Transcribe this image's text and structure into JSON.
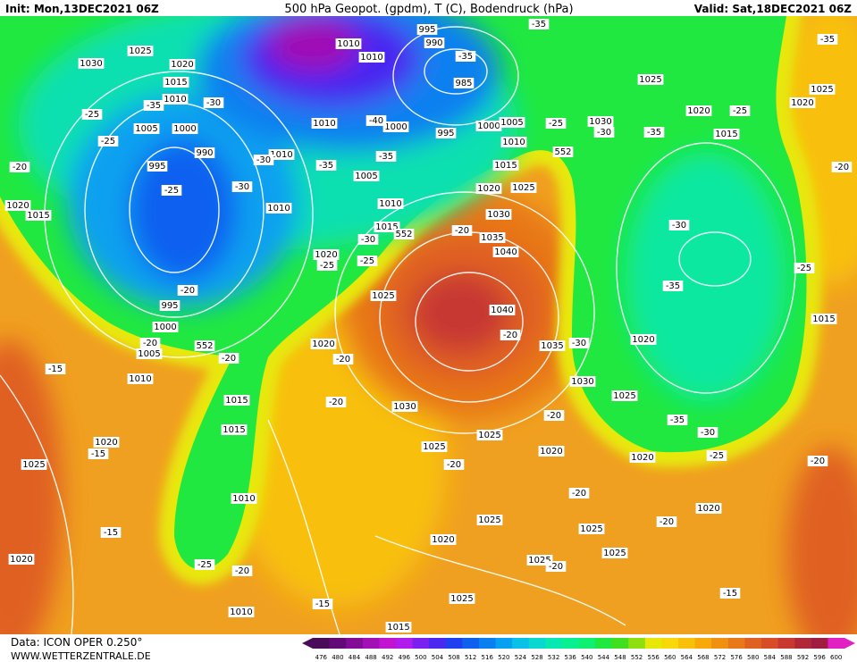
{
  "header": {
    "init": "Init: Mon,13DEC2021 06Z",
    "title": "500 hPa Geopot. (gpdm), T (C), Bodendruck (hPa)",
    "valid": "Valid: Sat,18DEC2021 06Z"
  },
  "footer": {
    "source": "Data: ICON OPER 0.250°",
    "website": "WWW.WETTERZENTRALE.DE"
  },
  "colorbar": {
    "ticks": [
      476,
      480,
      484,
      488,
      492,
      496,
      500,
      504,
      508,
      512,
      516,
      520,
      524,
      528,
      532,
      536,
      540,
      544,
      548,
      552,
      556,
      560,
      564,
      568,
      572,
      576,
      580,
      584,
      588,
      592,
      596,
      600
    ],
    "colors": [
      "#4a0a5a",
      "#640a78",
      "#820c96",
      "#a010b4",
      "#c014d0",
      "#b01cec",
      "#7a20f0",
      "#4a28f0",
      "#2040f0",
      "#1060f0",
      "#0a80f0",
      "#08a0f0",
      "#08c0e8",
      "#08d8d0",
      "#08e8b0",
      "#08f090",
      "#10f070",
      "#20e840",
      "#40e020",
      "#90e010",
      "#e8e808",
      "#f8d808",
      "#f8c008",
      "#f8a808",
      "#f09010",
      "#e87818",
      "#e06020",
      "#d84c28",
      "#c83830",
      "#b02838",
      "#a01c40",
      "#e020c0"
    ]
  },
  "map": {
    "pressure_labels": [
      "1030",
      "1025",
      "1020",
      "1015",
      "1010",
      "1005",
      "1000",
      "995",
      "990",
      "1010",
      "1010",
      "995",
      "990",
      "985",
      "1010",
      "1000",
      "995",
      "1000",
      "1005",
      "1010",
      "1010",
      "1005",
      "1010",
      "1010",
      "1015",
      "1020",
      "1015",
      "1020",
      "1025",
      "1030",
      "1035",
      "1040",
      "1040",
      "1035",
      "1030",
      "1025",
      "1030",
      "1025",
      "1020",
      "1015",
      "1015",
      "1010",
      "1010",
      "1015",
      "1020",
      "1025",
      "1025",
      "1025",
      "1025",
      "1025",
      "1025",
      "1025",
      "1020",
      "1020",
      "1020",
      "1020",
      "1015",
      "1015",
      "1020",
      "1025",
      "1030",
      "1025",
      "1020",
      "1020",
      "1025",
      "1010",
      "1005",
      "1000",
      "995",
      "1020",
      "1015",
      "1020",
      "552",
      "552",
      "552"
    ],
    "temperature_labels": [
      "-35",
      "-35",
      "-35",
      "-35",
      "-30",
      "-25",
      "-25",
      "-20",
      "-25",
      "-30",
      "-30",
      "-35",
      "-35",
      "-40",
      "-25",
      "-30",
      "-35",
      "-25",
      "-20",
      "-30",
      "-35",
      "-25",
      "-20",
      "-30",
      "-25",
      "-25",
      "-20",
      "-20",
      "-20",
      "-15",
      "-20",
      "-20",
      "-20",
      "-30",
      "-20",
      "-35",
      "-30",
      "-25",
      "-20",
      "-20",
      "-15",
      "-15",
      "-20",
      "-20",
      "-20",
      "-15",
      "-15",
      "-25",
      "-20"
    ]
  }
}
